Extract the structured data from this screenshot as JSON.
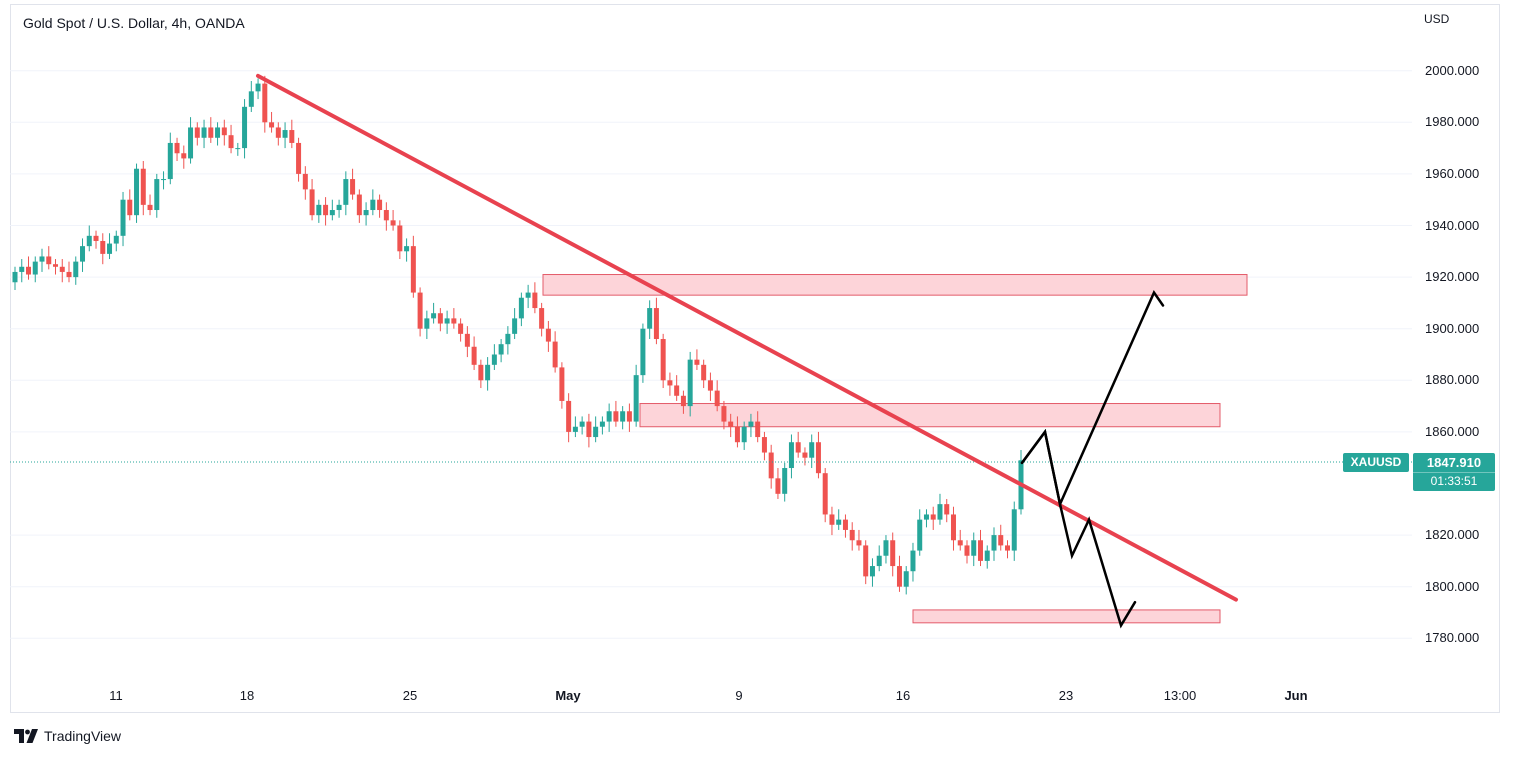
{
  "header": {
    "title": "Gold Spot / U.S. Dollar, 4h, OANDA",
    "currency": "USD"
  },
  "price_axis": [
    "2000.000",
    "1980.000",
    "1960.000",
    "1940.000",
    "1920.000",
    "1900.000",
    "1880.000",
    "1860.000",
    "1820.000",
    "1800.000",
    "1780.000"
  ],
  "time_axis": [
    {
      "label": "11",
      "bold": false
    },
    {
      "label": "18",
      "bold": false
    },
    {
      "label": "25",
      "bold": false
    },
    {
      "label": "May",
      "bold": true
    },
    {
      "label": "9",
      "bold": false
    },
    {
      "label": "16",
      "bold": false
    },
    {
      "label": "23",
      "bold": false
    },
    {
      "label": "13:00",
      "bold": false
    },
    {
      "label": "Jun",
      "bold": true
    }
  ],
  "last_price": {
    "symbol": "XAUUSD",
    "price": "1847.910",
    "countdown": "01:33:51"
  },
  "brand": {
    "name": "TradingView"
  },
  "colors": {
    "up": "#26a69a",
    "down": "#ef5350",
    "trendline": "#e8424f",
    "zone_fill": "#fdd4d9",
    "zone_border": "#e35b6a",
    "projection": "#000000",
    "grid": "#f0f3fa"
  },
  "chart_data": {
    "type": "candlestick",
    "interval": "4h",
    "ylim": [
      1772,
      2020
    ],
    "grid": false,
    "closes": [
      1922,
      1924,
      1921,
      1926,
      1928,
      1925,
      1924,
      1922,
      1920,
      1926,
      1932,
      1936,
      1934,
      1929,
      1933,
      1936,
      1950,
      1944,
      1962,
      1948,
      1946,
      1958,
      1958,
      1972,
      1968,
      1966,
      1978,
      1974,
      1978,
      1974,
      1978,
      1975,
      1970,
      1970,
      1986,
      1992,
      1995,
      1980,
      1978,
      1974,
      1977,
      1972,
      1960,
      1954,
      1944,
      1948,
      1944,
      1946,
      1948,
      1958,
      1952,
      1944,
      1946,
      1950,
      1946,
      1942,
      1940,
      1930,
      1932,
      1914,
      1900,
      1904,
      1906,
      1902,
      1904,
      1902,
      1898,
      1893,
      1886,
      1880,
      1886,
      1890,
      1894,
      1898,
      1904,
      1912,
      1914,
      1908,
      1900,
      1895,
      1885,
      1872,
      1860,
      1862,
      1864,
      1858,
      1862,
      1864,
      1868,
      1864,
      1868,
      1864,
      1882,
      1900,
      1908,
      1896,
      1880,
      1878,
      1874,
      1870,
      1888,
      1886,
      1880,
      1876,
      1870,
      1864,
      1862,
      1856,
      1862,
      1864,
      1858,
      1852,
      1842,
      1836,
      1846,
      1856,
      1852,
      1850,
      1856,
      1844,
      1828,
      1824,
      1826,
      1822,
      1818,
      1816,
      1804,
      1808,
      1812,
      1818,
      1808,
      1800,
      1806,
      1814,
      1826,
      1828,
      1826,
      1832,
      1828,
      1818,
      1816,
      1812,
      1818,
      1810,
      1814,
      1820,
      1816,
      1814,
      1830,
      1849
    ],
    "trendline": {
      "from": {
        "date": "Apr 18",
        "price": 1998
      },
      "to": {
        "date": "May 26",
        "price": 1795
      }
    },
    "zones": [
      {
        "top": 1921,
        "bottom": 1913
      },
      {
        "top": 1871,
        "bottom": 1862
      },
      {
        "top": 1791,
        "bottom": 1786
      }
    ],
    "projection_paths": [
      [
        1848,
        1860,
        1832,
        1914,
        1909
      ],
      [
        1848,
        1860,
        1832,
        1812,
        1826,
        1785,
        1794
      ]
    ],
    "last_price": 1847.91
  }
}
